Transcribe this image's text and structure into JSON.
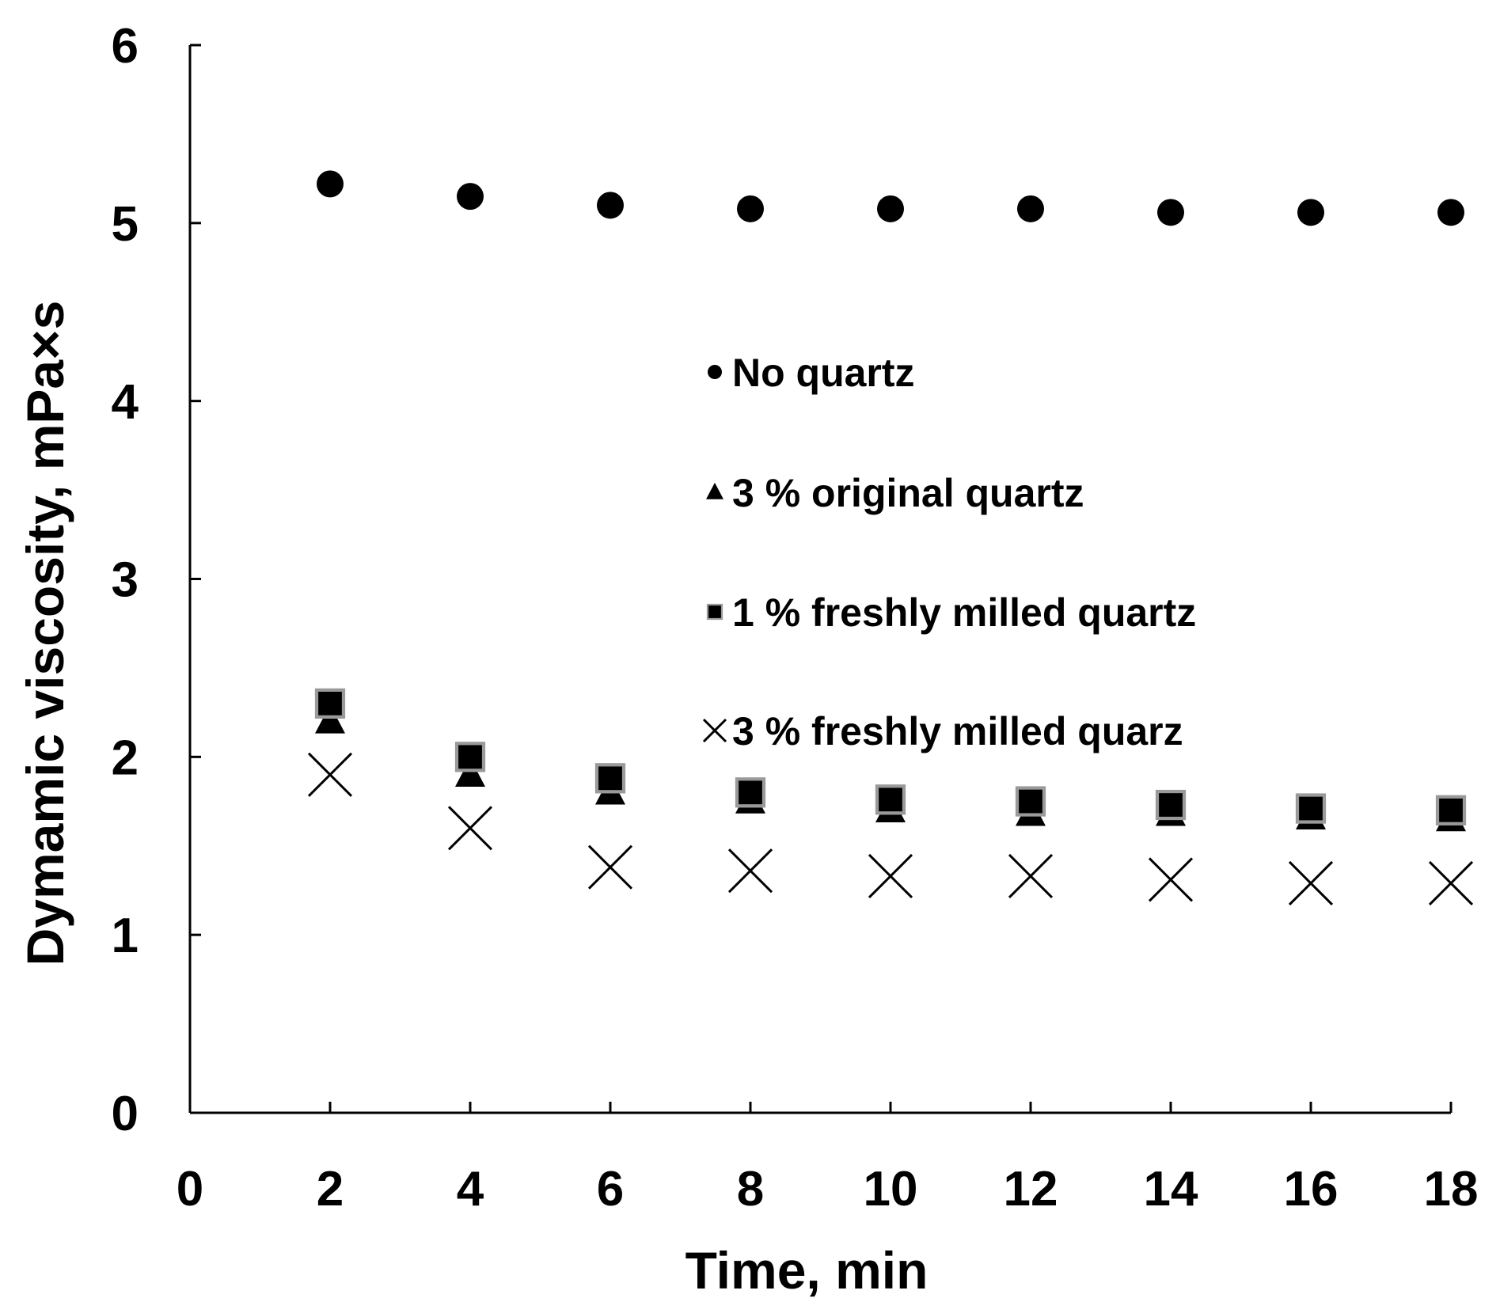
{
  "chart_data": {
    "type": "scatter",
    "xlabel": "Time, min",
    "ylabel": "Dymamic viscosity, mPa×s",
    "xlim": [
      0,
      18
    ],
    "ylim": [
      0,
      6
    ],
    "xticks": [
      "0",
      "2",
      "4",
      "6",
      "8",
      "10",
      "12",
      "14",
      "16",
      "18"
    ],
    "yticks": [
      "0",
      "1",
      "2",
      "3",
      "4",
      "5",
      "6"
    ],
    "grid": false,
    "legend_position": "center-right inside plot",
    "x": [
      2,
      4,
      6,
      8,
      10,
      12,
      14,
      16,
      18
    ],
    "series": [
      {
        "name": "No quartz",
        "marker": "circle",
        "color": "#000000",
        "values": [
          5.22,
          5.15,
          5.1,
          5.08,
          5.08,
          5.08,
          5.06,
          5.06,
          5.06
        ]
      },
      {
        "name": "3 % original quartz",
        "marker": "triangle",
        "color": "#000000",
        "values": [
          2.2,
          1.9,
          1.8,
          1.75,
          1.7,
          1.68,
          1.68,
          1.66,
          1.65
        ]
      },
      {
        "name": "1 % freshly milled quartz",
        "marker": "square",
        "color": "#000000",
        "values": [
          2.3,
          2.0,
          1.88,
          1.8,
          1.76,
          1.75,
          1.73,
          1.71,
          1.7
        ]
      },
      {
        "name": "3 % freshly milled quarz",
        "marker": "cross",
        "color": "#000000",
        "values": [
          1.9,
          1.6,
          1.38,
          1.36,
          1.33,
          1.33,
          1.31,
          1.29,
          1.29
        ]
      }
    ]
  }
}
